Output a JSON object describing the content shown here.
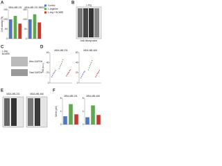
{
  "legend": [
    {
      "name": "Control",
      "color": "#4f78c0"
    },
    {
      "name": "L-Arginine",
      "color": "#5fa84f"
    },
    {
      "name": "L-Arg + BCM95",
      "color": "#c23b2f"
    }
  ],
  "panels": {
    "A": {
      "label": "A",
      "ylabel": "Cell viability (%)",
      "ylim": [
        0,
        150
      ],
      "yticks": [
        0,
        50,
        100,
        150
      ],
      "charts": [
        {
          "title": "MDA-MB-231",
          "values": [
            100,
            118,
            78
          ]
        },
        {
          "title": "MDA-MB-231 BMD2",
          "values": [
            100,
            126,
            84
          ]
        }
      ]
    },
    "B": {
      "label": "B",
      "lanes": "L-Arg",
      "caption": "Anti-Nitrotyrosine"
    },
    "C": {
      "label": "C",
      "rows": [
        "L-Arg",
        "BCM95"
      ],
      "blots": [
        "Nitro-GAPDH",
        "Total GAPDH"
      ]
    },
    "D": {
      "label": "D",
      "ylabel": "NO (a.u.)",
      "ylim": [
        0,
        60
      ],
      "yticks": [
        0,
        20,
        40,
        60
      ],
      "charts": [
        {
          "title": "MDA-MB-231",
          "groups": [
            [
              12,
              15,
              18,
              20,
              22,
              25
            ],
            [
              28,
              32,
              35,
              38,
              42,
              46
            ],
            [
              14,
              17,
              19,
              21,
              24,
              26
            ]
          ]
        },
        {
          "title": "MDA-MB-468",
          "groups": [
            [
              10,
              13,
              16,
              18,
              21,
              23
            ],
            [
              26,
              30,
              34,
              37,
              40,
              44
            ],
            [
              12,
              15,
              18,
              20,
              22,
              25
            ]
          ]
        }
      ]
    },
    "E": {
      "label": "E",
      "blots": [
        "MDA-MB-231",
        "MDA-MB-468"
      ]
    },
    "F": {
      "label": "F",
      "ylabel": "Nitrite (μM)",
      "ylim": [
        0,
        8
      ],
      "yticks": [
        0,
        4,
        8
      ],
      "charts": [
        {
          "title": "MDA-MB-231",
          "values": [
            2.5,
            6.2,
            3.1
          ]
        },
        {
          "title": "MDA-MB-468",
          "values": [
            2.2,
            5.8,
            2.9
          ]
        }
      ]
    }
  }
}
